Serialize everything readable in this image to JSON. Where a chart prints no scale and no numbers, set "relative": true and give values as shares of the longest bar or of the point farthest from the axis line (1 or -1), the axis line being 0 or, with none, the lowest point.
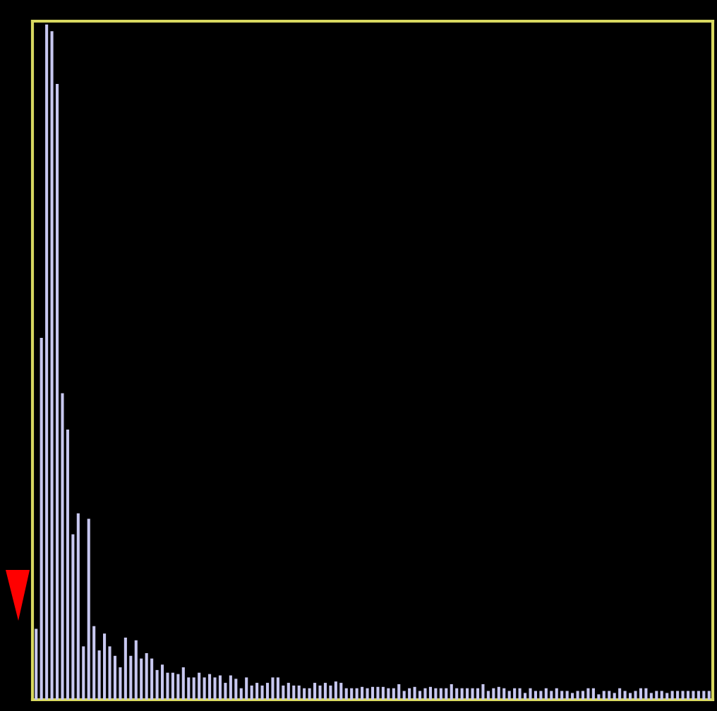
{
  "chart_data": {
    "type": "bar",
    "relative": true,
    "color": "#c8c8f0",
    "grid": false,
    "legend": false,
    "categories": [
      null,
      null,
      null,
      null,
      null,
      null,
      null,
      null,
      null,
      null,
      null,
      null,
      null,
      null,
      null,
      null,
      null,
      null,
      null,
      null,
      null,
      null,
      null,
      null,
      null,
      null,
      null,
      null,
      null,
      null,
      null,
      null,
      null,
      null,
      null,
      null,
      null,
      null,
      null,
      null,
      null,
      null,
      null,
      null,
      null,
      null,
      null,
      null,
      null,
      null,
      null,
      null,
      null,
      null,
      null,
      null,
      null,
      null,
      null,
      null,
      null,
      null,
      null,
      null,
      null,
      null,
      null,
      null,
      null,
      null,
      null,
      null,
      null,
      null,
      null,
      null,
      null,
      null,
      null,
      null,
      null,
      null,
      null,
      null,
      null,
      null,
      null,
      null,
      null,
      null,
      null,
      null,
      null,
      null,
      null,
      null,
      null,
      null,
      null,
      null,
      null,
      null,
      null,
      null,
      null,
      null,
      null,
      null,
      null,
      null,
      null,
      null,
      null,
      null,
      null,
      null,
      null,
      null,
      null,
      null,
      null,
      null,
      null,
      null,
      null,
      null,
      null,
      null,
      null
    ],
    "values": [
      0.105,
      0.536,
      1,
      0.99,
      0.912,
      0.454,
      0.4,
      0.245,
      0.276,
      0.079,
      0.268,
      0.109,
      0.073,
      0.098,
      0.079,
      0.065,
      0.048,
      0.092,
      0.065,
      0.088,
      0.061,
      0.069,
      0.061,
      0.044,
      0.052,
      0.04,
      0.04,
      0.038,
      0.048,
      0.033,
      0.033,
      0.04,
      0.033,
      0.038,
      0.033,
      0.036,
      0.025,
      0.036,
      0.031,
      0.017,
      0.033,
      0.021,
      0.025,
      0.021,
      0.025,
      0.033,
      0.033,
      0.021,
      0.025,
      0.021,
      0.021,
      0.017,
      0.017,
      0.025,
      0.021,
      0.025,
      0.021,
      0.027,
      0.025,
      0.017,
      0.017,
      0.017,
      0.019,
      0.017,
      0.019,
      0.019,
      0.019,
      0.017,
      0.017,
      0.023,
      0.013,
      0.017,
      0.019,
      0.013,
      0.017,
      0.019,
      0.017,
      0.017,
      0.017,
      0.023,
      0.017,
      0.017,
      0.017,
      0.017,
      0.017,
      0.023,
      0.013,
      0.017,
      0.019,
      0.017,
      0.013,
      0.017,
      0.017,
      0.01,
      0.017,
      0.013,
      0.013,
      0.017,
      0.013,
      0.017,
      0.013,
      0.013,
      0.01,
      0.013,
      0.013,
      0.017,
      0.017,
      0.008,
      0.013,
      0.013,
      0.01,
      0.017,
      0.013,
      0.01,
      0.013,
      0.017,
      0.017,
      0.01,
      0.013,
      0.013,
      0.01,
      0.013,
      0.013,
      0.013,
      0.013,
      0.013,
      0.013,
      0.013,
      0.013
    ]
  }
}
